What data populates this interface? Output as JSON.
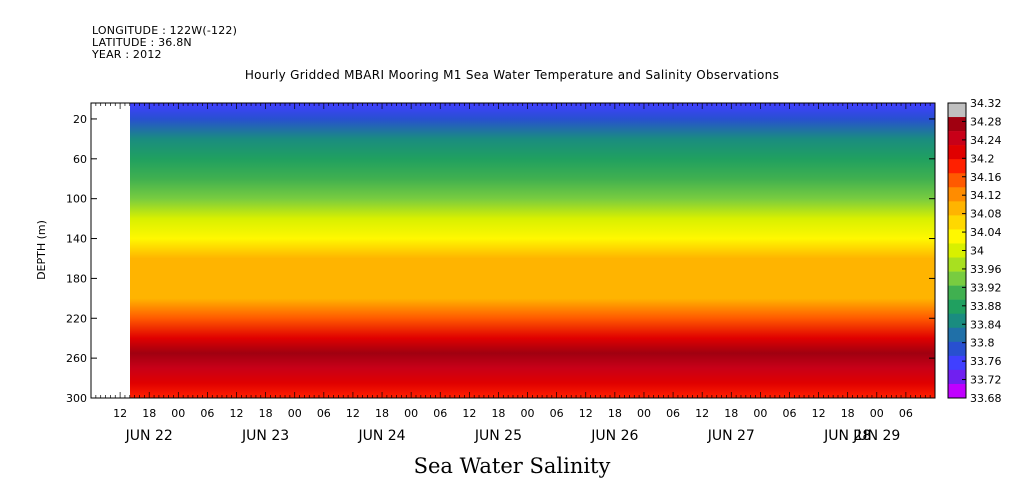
{
  "header": {
    "longitude": "LONGITUDE : 122W(-122)",
    "latitude": "LATITUDE : 36.8N",
    "year": "YEAR : 2012"
  },
  "chart_data": {
    "type": "heatmap",
    "title": "Hourly Gridded MBARI Mooring M1 Sea Water Temperature and Salinity Observations",
    "xlabel": "Sea Water Salinity",
    "ylabel": "DEPTH (m)",
    "x_range_hours": [
      "Jun 22 06:00",
      "Jun 29 12:00"
    ],
    "data_start": "Jun 22 15:00",
    "ylim": [
      300,
      4
    ],
    "y_ticks": [
      20,
      60,
      100,
      140,
      180,
      220,
      260,
      300
    ],
    "x_hour_ticks": [
      "12",
      "18",
      "00",
      "06",
      "12",
      "18",
      "00",
      "06",
      "12",
      "18",
      "00",
      "06",
      "12",
      "18",
      "00",
      "06",
      "12",
      "18",
      "00",
      "06",
      "12",
      "18",
      "00",
      "06",
      "12",
      "18",
      "00",
      "06"
    ],
    "x_day_labels": [
      "JUN 22",
      "JUN 23",
      "JUN 24",
      "JUN 25",
      "JUN 26",
      "JUN 27",
      "JUN 28",
      "JUN 29"
    ],
    "depth_profile": [
      {
        "depth": 5,
        "salinity": 33.74
      },
      {
        "depth": 20,
        "salinity": 33.77
      },
      {
        "depth": 40,
        "salinity": 33.82
      },
      {
        "depth": 60,
        "salinity": 33.86
      },
      {
        "depth": 80,
        "salinity": 33.89
      },
      {
        "depth": 100,
        "salinity": 33.93
      },
      {
        "depth": 120,
        "salinity": 33.99
      },
      {
        "depth": 140,
        "salinity": 34.05
      },
      {
        "depth": 160,
        "salinity": 34.09
      },
      {
        "depth": 180,
        "salinity": 34.1
      },
      {
        "depth": 200,
        "salinity": 34.09
      },
      {
        "depth": 220,
        "salinity": 34.18
      },
      {
        "depth": 240,
        "salinity": 34.25
      },
      {
        "depth": 255,
        "salinity": 34.29
      },
      {
        "depth": 270,
        "salinity": 34.27
      },
      {
        "depth": 285,
        "salinity": 34.23
      },
      {
        "depth": 300,
        "salinity": 34.2
      }
    ],
    "colorbar": {
      "labels": [
        "34.32",
        "34.28",
        "34.24",
        "34.2",
        "34.16",
        "34.12",
        "34.08",
        "34.04",
        "34",
        "33.96",
        "33.92",
        "33.88",
        "33.84",
        "33.8",
        "33.76",
        "33.72",
        "33.68"
      ],
      "colors": [
        "#c0c0c0",
        "#a00010",
        "#c80018",
        "#e00000",
        "#ff2000",
        "#ff5a00",
        "#ff8c00",
        "#ffb400",
        "#ffd800",
        "#fff800",
        "#d8f000",
        "#a8e020",
        "#78cc40",
        "#40b050",
        "#20a060",
        "#1a8c80",
        "#2070a8",
        "#2850d0",
        "#4040ff",
        "#7020f0",
        "#c000ff"
      ]
    }
  }
}
